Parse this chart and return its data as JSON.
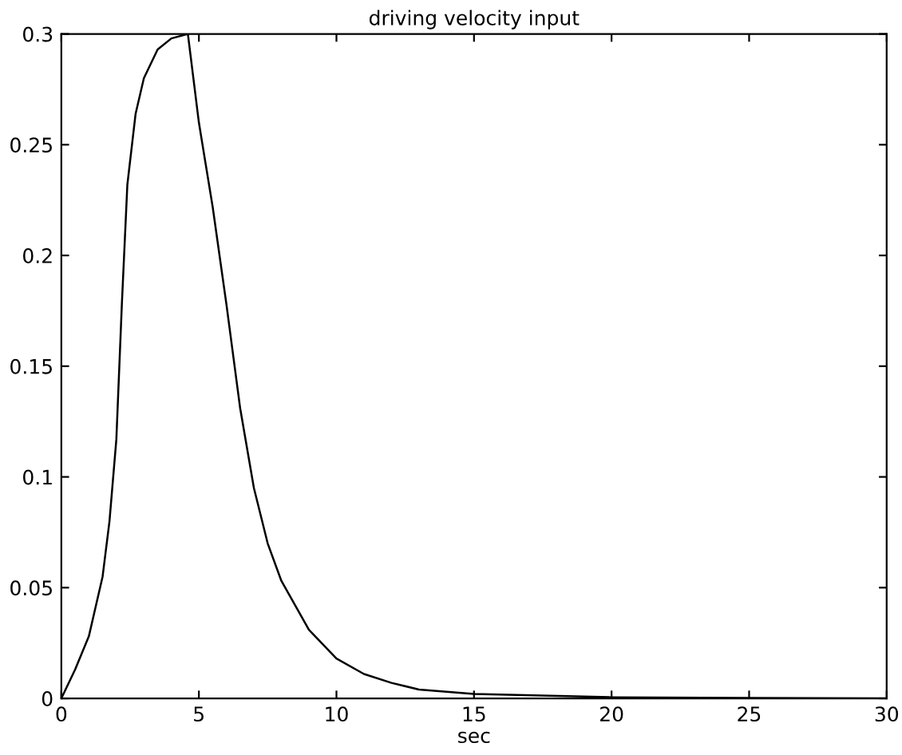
{
  "chart_data": {
    "type": "line",
    "title": "driving velocity input",
    "xlabel": "sec",
    "xlim": [
      0,
      30
    ],
    "ylim": [
      0,
      0.3
    ],
    "xticks": [
      0,
      5,
      10,
      15,
      20,
      25,
      30
    ],
    "yticks": [
      0,
      0.05,
      0.1,
      0.15,
      0.2,
      0.25,
      0.3
    ],
    "grid": false,
    "series": [
      {
        "color": "#000000",
        "x": [
          0,
          0.5,
          1,
          1.5,
          1.75,
          2,
          2.2,
          2.4,
          2.7,
          3,
          3.5,
          4,
          4.6,
          5,
          5.5,
          6,
          6.5,
          7,
          7.5,
          8,
          9,
          10,
          11,
          12,
          13,
          15,
          20,
          25,
          30
        ],
        "values": [
          0,
          0.013,
          0.028,
          0.055,
          0.08,
          0.117,
          0.178,
          0.232,
          0.264,
          0.28,
          0.293,
          0.298,
          0.3,
          0.26,
          0.222,
          0.178,
          0.131,
          0.095,
          0.07,
          0.053,
          0.031,
          0.018,
          0.011,
          0.007,
          0.004,
          0.002,
          0.0005,
          0.0002,
          0
        ]
      }
    ]
  }
}
